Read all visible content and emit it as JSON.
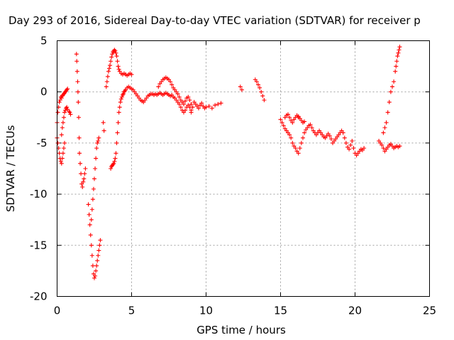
{
  "chart_data": {
    "type": "scatter",
    "title": "Day 293 of 2016, Sidereal Day-to-day VTEC variation (SDTVAR) for receiver p",
    "xlabel": "GPS time / hours",
    "ylabel": "SDTVAR / TECUs",
    "xlim": [
      0,
      25
    ],
    "ylim": [
      -20,
      5
    ],
    "xticks": [
      "0",
      "5",
      "10",
      "15",
      "20",
      "25"
    ],
    "yticks": [
      "5",
      "0",
      "-5",
      "-10",
      "-15",
      "-20"
    ],
    "grid": true,
    "marker": "plus",
    "color": "#ff0000",
    "series": [
      {
        "x": [
          0.0,
          0.05,
          0.1,
          0.15,
          0.2,
          0.25,
          0.3,
          0.35,
          0.4,
          0.45,
          0.5,
          0.55,
          0.6,
          0.65,
          0.7,
          0.0,
          0.05,
          0.1,
          0.15,
          0.2,
          0.25,
          0.3,
          0.35,
          0.4,
          0.45,
          0.5,
          0.3,
          0.35,
          0.4,
          0.45,
          0.5,
          0.55,
          0.6,
          0.65,
          0.7,
          0.8,
          0.85,
          0.9,
          1.3,
          1.32,
          1.35,
          1.38,
          1.4,
          1.42,
          1.45,
          1.48,
          1.5,
          1.55,
          1.6,
          1.65,
          1.7,
          1.75,
          1.8,
          1.85,
          1.9,
          2.1,
          2.15,
          2.2,
          2.25,
          2.3,
          2.35,
          2.4,
          2.45,
          2.5,
          2.55,
          2.6,
          2.65,
          2.7,
          2.75,
          2.8,
          2.85,
          2.9,
          2.3,
          2.35,
          2.4,
          2.45,
          2.5,
          2.55,
          2.6,
          2.65,
          2.7,
          2.75,
          2.8,
          3.1,
          3.15,
          3.3,
          3.35,
          3.4,
          3.45,
          3.5,
          3.55,
          3.6,
          3.65,
          3.7,
          3.75,
          3.8,
          3.85,
          3.9,
          3.95,
          4.0,
          4.05,
          4.1,
          4.15,
          4.2,
          4.3,
          4.4,
          4.5,
          4.6,
          4.7,
          4.8,
          4.9,
          5.0,
          3.6,
          3.65,
          3.7,
          3.75,
          3.8,
          3.85,
          3.9,
          3.95,
          4.0,
          4.05,
          4.1,
          4.15,
          4.2,
          4.25,
          4.3,
          4.35,
          4.4,
          4.45,
          4.5,
          4.55,
          4.6,
          4.7,
          4.8,
          4.9,
          5.0,
          5.1,
          5.2,
          5.3,
          5.4,
          5.5,
          5.6,
          5.7,
          5.8,
          5.9,
          6.0,
          6.1,
          6.2,
          6.3,
          6.4,
          6.5,
          6.6,
          6.7,
          6.8,
          6.9,
          7.0,
          7.1,
          7.2,
          7.3,
          7.4,
          7.5,
          7.6,
          7.7,
          7.8,
          7.9,
          8.0,
          8.1,
          8.2,
          8.3,
          8.4,
          8.5,
          8.6,
          8.7,
          8.8,
          8.9,
          9.0,
          6.8,
          6.9,
          7.0,
          7.1,
          7.2,
          7.3,
          7.4,
          7.5,
          7.6,
          7.7,
          7.8,
          7.9,
          8.0,
          8.1,
          8.2,
          8.3,
          8.4,
          8.5,
          8.6,
          8.7,
          8.8,
          8.9,
          9.0,
          9.0,
          9.1,
          9.2,
          9.3,
          9.4,
          9.5,
          9.6,
          9.7,
          9.8,
          9.9,
          10.0,
          10.2,
          10.4,
          10.6,
          10.8,
          11.0,
          12.3,
          12.4,
          13.3,
          13.4,
          13.5,
          13.6,
          13.7,
          13.8,
          13.9,
          15.0,
          15.1,
          15.2,
          15.3,
          15.4,
          15.5,
          15.6,
          15.7,
          15.8,
          15.9,
          16.0,
          16.1,
          16.2,
          16.3,
          16.4,
          16.5,
          16.6,
          16.7,
          16.8,
          16.9,
          17.0,
          17.1,
          17.2,
          17.3,
          17.4,
          17.5,
          17.6,
          17.7,
          17.8,
          17.9,
          18.0,
          18.1,
          18.2,
          18.3,
          18.4,
          18.5,
          18.6,
          18.7,
          18.8,
          18.9,
          19.0,
          19.1,
          19.2,
          19.3,
          19.4,
          19.5,
          19.6,
          19.7,
          19.8,
          19.9,
          20.0,
          20.1,
          20.2,
          20.3,
          20.4,
          20.5,
          20.6,
          15.3,
          15.4,
          15.5,
          15.6,
          15.7,
          15.8,
          15.9,
          16.0,
          16.1,
          16.2,
          16.2,
          16.3,
          16.4,
          16.5,
          16.6,
          21.6,
          21.7,
          21.8,
          21.9,
          22.0,
          22.1,
          22.2,
          22.3,
          22.4,
          22.5,
          22.6,
          22.7,
          22.8,
          22.9,
          23.0,
          21.9,
          22.0,
          22.1,
          22.2,
          22.3,
          22.4,
          22.5,
          22.6,
          22.7,
          22.75,
          22.8,
          22.85,
          22.9,
          22.95,
          23.0
        ],
        "y": [
          -3.0,
          -2.0,
          -1.5,
          -1.0,
          -0.8,
          -0.5,
          -0.6,
          -0.4,
          -0.3,
          -0.2,
          -0.1,
          0.0,
          0.1,
          0.2,
          0.3,
          -4.5,
          -5.0,
          -5.5,
          -6.0,
          -6.5,
          -6.8,
          -7.0,
          -6.5,
          -6.0,
          -5.5,
          -5.0,
          -4.2,
          -3.5,
          -3.0,
          -2.5,
          -2.0,
          -1.8,
          -1.6,
          -1.5,
          -1.7,
          -1.9,
          -2.0,
          -2.2,
          3.7,
          3.0,
          2.0,
          1.0,
          0.0,
          -1.0,
          -2.5,
          -4.5,
          -6.0,
          -7.0,
          -8.0,
          -9.0,
          -9.3,
          -8.8,
          -8.5,
          -8.0,
          -7.5,
          -11.0,
          -12.0,
          -13.0,
          -14.0,
          -15.0,
          -16.0,
          -17.0,
          -17.8,
          -18.2,
          -18.0,
          -17.5,
          -17.0,
          -16.5,
          -16.0,
          -15.5,
          -15.0,
          -14.5,
          -12.5,
          -11.5,
          -10.5,
          -9.5,
          -8.5,
          -7.5,
          -6.5,
          -5.5,
          -5.0,
          -4.8,
          -4.5,
          -3.0,
          -3.8,
          0.5,
          1.0,
          1.5,
          2.0,
          2.3,
          2.6,
          3.0,
          3.4,
          3.7,
          3.9,
          4.0,
          4.1,
          4.0,
          3.8,
          3.5,
          3.0,
          2.5,
          2.2,
          2.0,
          1.8,
          1.7,
          1.8,
          1.7,
          1.6,
          1.7,
          1.8,
          1.7,
          -7.5,
          -7.3,
          -7.2,
          -7.1,
          -7.0,
          -6.8,
          -6.5,
          -6.0,
          -5.0,
          -4.0,
          -3.0,
          -2.0,
          -1.5,
          -1.0,
          -0.7,
          -0.5,
          -0.3,
          -0.2,
          0.0,
          0.1,
          0.2,
          0.4,
          0.5,
          0.4,
          0.3,
          0.2,
          0.0,
          -0.2,
          -0.4,
          -0.6,
          -0.8,
          -0.9,
          -1.0,
          -0.8,
          -0.6,
          -0.4,
          -0.3,
          -0.2,
          -0.2,
          -0.3,
          -0.2,
          -0.3,
          -0.2,
          -0.1,
          -0.2,
          -0.3,
          -0.2,
          -0.1,
          -0.2,
          -0.3,
          -0.4,
          -0.3,
          -0.5,
          -0.6,
          -0.8,
          -1.0,
          -1.2,
          -1.5,
          -1.8,
          -2.0,
          -1.8,
          -1.5,
          -1.3,
          -1.5,
          -1.8,
          0.5,
          0.8,
          1.0,
          1.2,
          1.3,
          1.4,
          1.3,
          1.2,
          1.0,
          0.7,
          0.4,
          0.2,
          0.0,
          -0.2,
          -0.5,
          -0.8,
          -1.0,
          -1.2,
          -0.9,
          -0.6,
          -0.5,
          -0.8,
          -1.2,
          -2.0,
          -1.5,
          -1.0,
          -1.2,
          -1.4,
          -1.6,
          -1.3,
          -1.1,
          -1.4,
          -1.6,
          -1.5,
          -1.4,
          -1.6,
          -1.3,
          -1.2,
          -1.1,
          0.5,
          0.2,
          1.2,
          1.0,
          0.7,
          0.4,
          0.0,
          -0.4,
          -0.8,
          -2.7,
          -3.0,
          -3.3,
          -3.6,
          -3.8,
          -4.0,
          -4.2,
          -4.5,
          -5.0,
          -5.3,
          -5.5,
          -5.8,
          -6.0,
          -5.5,
          -5.0,
          -4.5,
          -4.0,
          -3.7,
          -3.5,
          -3.3,
          -3.2,
          -3.5,
          -3.8,
          -4.0,
          -4.2,
          -4.0,
          -3.8,
          -4.0,
          -4.2,
          -4.4,
          -4.5,
          -4.3,
          -4.1,
          -4.3,
          -4.6,
          -5.0,
          -4.8,
          -4.6,
          -4.4,
          -4.2,
          -4.0,
          -3.8,
          -4.0,
          -4.5,
          -5.0,
          -5.4,
          -5.6,
          -5.2,
          -4.8,
          -5.5,
          -6.0,
          -6.2,
          -6.0,
          -5.8,
          -5.6,
          -5.7,
          -5.5,
          -2.5,
          -2.3,
          -2.2,
          -2.5,
          -2.8,
          -3.0,
          -2.7,
          -2.5,
          -2.3,
          -2.5,
          -2.4,
          -2.6,
          -2.8,
          -3.0,
          -2.9,
          -4.8,
          -5.0,
          -5.2,
          -5.5,
          -5.8,
          -5.6,
          -5.4,
          -5.2,
          -5.1,
          -5.3,
          -5.5,
          -5.4,
          -5.3,
          -5.4,
          -5.3,
          -4.0,
          -3.5,
          -3.0,
          -2.0,
          -1.0,
          0.0,
          0.5,
          1.0,
          2.0,
          2.5,
          3.0,
          3.5,
          3.8,
          4.1,
          4.4
        ]
      }
    ]
  }
}
